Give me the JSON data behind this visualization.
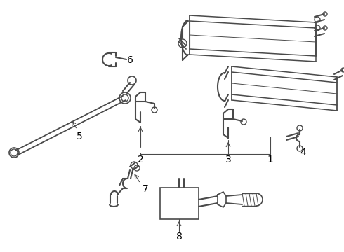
{
  "bg_color": "#ffffff",
  "line_color": "#4a4a4a",
  "label_color": "#000000",
  "lw": 1.0,
  "label_fontsize": 10,
  "figsize": [
    4.9,
    3.6
  ],
  "dpi": 100
}
